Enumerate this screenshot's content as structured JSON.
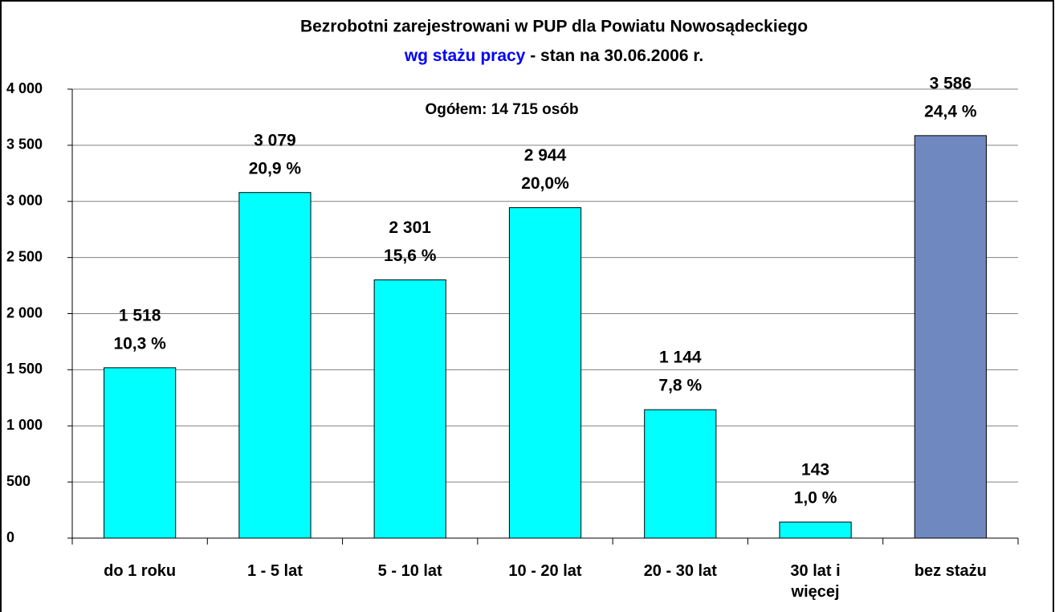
{
  "chart_data": {
    "type": "bar",
    "title": "Bezrobotni zarejestrowani w PUP dla Powiatu Nowosądeckiego",
    "subtitle_highlight": "wg stażu pracy",
    "subtitle_rest": "- stan na 30.06.2006 r.",
    "annotation": "Ogółem: 14 715 osób",
    "categories": [
      "do 1 roku",
      "1 - 5 lat",
      "5 - 10 lat",
      "10 - 20 lat",
      "20 - 30 lat",
      "30 lat i więcej",
      "bez stażu"
    ],
    "values": [
      1518,
      3079,
      2301,
      2944,
      1144,
      143,
      3586
    ],
    "value_labels": [
      "1 518",
      "3 079",
      "2 301",
      "2 944",
      "1 144",
      "143",
      "3 586"
    ],
    "shares": [
      10.3,
      20.9,
      15.6,
      20.0,
      7.8,
      1.0,
      24.4
    ],
    "share_labels": [
      "10,3 %",
      "20,9 %",
      "15,6 %",
      "20,0%",
      "7,8 %",
      "1,0 %",
      "24,4 %"
    ],
    "colors": [
      "#00ffff",
      "#00ffff",
      "#00ffff",
      "#00ffff",
      "#00ffff",
      "#00ffff",
      "#7088c0"
    ],
    "ylim": [
      0,
      4000
    ],
    "yticks": [
      0,
      500,
      {
        "value": 1000,
        "label": "1 000"
      },
      {
        "value": 1500,
        "label": "1 500"
      },
      {
        "value": 2000,
        "label": "2 000"
      },
      {
        "value": 2500,
        "label": "2 500"
      },
      {
        "value": 3000,
        "label": "3 000"
      },
      {
        "value": 3500,
        "label": "3 500"
      },
      {
        "value": 4000,
        "label": "4 000"
      }
    ],
    "grid": true
  }
}
